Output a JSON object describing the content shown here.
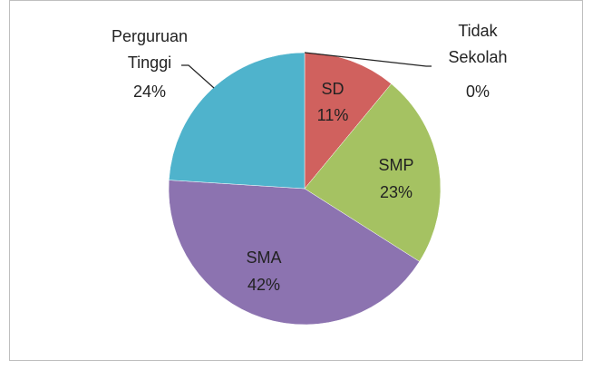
{
  "chart_data": {
    "type": "pie",
    "categories": [
      "Tidak Sekolah",
      "SD",
      "SMP",
      "SMA",
      "Perguruan Tinggi"
    ],
    "values": [
      0,
      11,
      23,
      42,
      24
    ],
    "value_labels": [
      "0%",
      "11%",
      "23%",
      "42%",
      "24%"
    ],
    "colors": [
      "#c0504d",
      "#d0615e",
      "#a5c262",
      "#8c73b0",
      "#4fb3cc"
    ]
  }
}
